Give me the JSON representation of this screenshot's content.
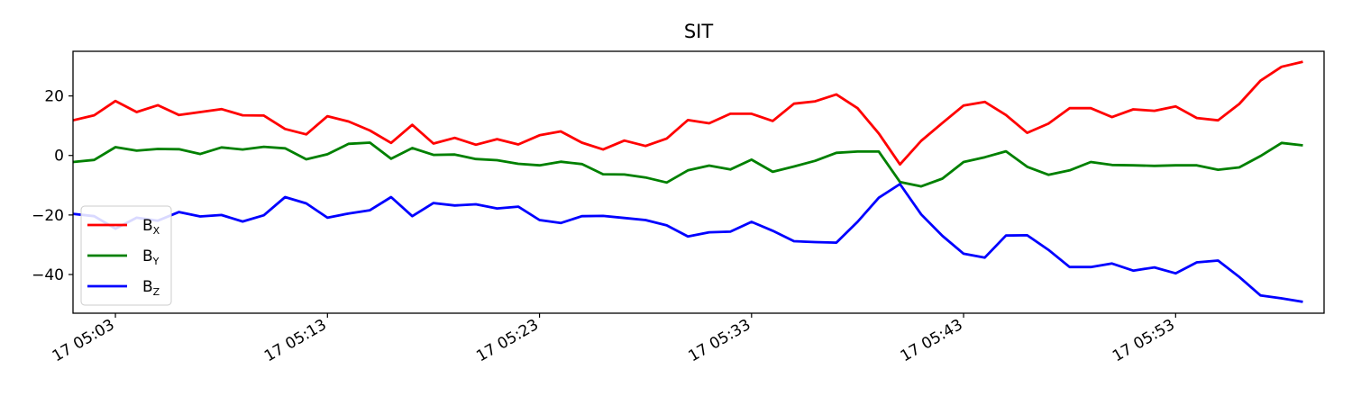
{
  "chart_data": {
    "type": "line",
    "title": "SIT",
    "xlabel": "",
    "ylabel": "",
    "x_unit": "minute",
    "x_start": "17 05:01",
    "x_end": "17 06:00",
    "xlim": [
      "17 05:01",
      "17 06:00"
    ],
    "ylim": [
      -53,
      35
    ],
    "x_ticks": [
      "17 05:03",
      "17 05:13",
      "17 05:23",
      "17 05:33",
      "17 05:43",
      "17 05:53"
    ],
    "y_ticks": [
      20,
      0,
      -20,
      -40
    ],
    "grid": false,
    "legend": "lower-left",
    "series": [
      {
        "name": "B",
        "subscript": "X",
        "color": "#ff0000",
        "values": [
          11.8,
          13.5,
          18.3,
          14.6,
          16.9,
          13.6,
          14.6,
          15.6,
          13.5,
          13.4,
          8.9,
          7.1,
          13.2,
          11.4,
          8.4,
          4.2,
          10.3,
          4.0,
          5.9,
          3.6,
          5.5,
          3.7,
          6.8,
          8.1,
          4.3,
          2.0,
          5.0,
          3.2,
          5.7,
          11.9,
          10.8,
          14.0,
          14.0,
          11.6,
          17.4,
          18.2,
          20.5,
          15.9,
          7.4,
          -3.0,
          4.9,
          10.9,
          16.8,
          18.0,
          13.6,
          7.6,
          10.7,
          15.9,
          15.9,
          12.9,
          15.5,
          15.0,
          16.5,
          12.6,
          11.8,
          17.3,
          25.1,
          29.8,
          31.5
        ]
      },
      {
        "name": "B",
        "subscript": "Y",
        "color": "#008000",
        "values": [
          -2.2,
          -1.5,
          2.8,
          1.6,
          2.2,
          2.1,
          0.5,
          2.7,
          2.0,
          2.9,
          2.4,
          -1.3,
          0.4,
          3.9,
          4.3,
          -1.1,
          2.5,
          0.2,
          0.3,
          -1.2,
          -1.6,
          -2.8,
          -3.3,
          -2.1,
          -2.9,
          -6.3,
          -6.4,
          -7.4,
          -9.1,
          -5.0,
          -3.4,
          -4.7,
          -1.4,
          -5.5,
          -3.7,
          -1.8,
          0.9,
          1.3,
          1.3,
          -8.9,
          -10.4,
          -7.8,
          -2.2,
          -0.6,
          1.4,
          -3.8,
          -6.5,
          -5.0,
          -2.2,
          -3.2,
          -3.3,
          -3.5,
          -3.3,
          -3.3,
          -4.8,
          -4.0,
          -0.2,
          4.2,
          3.4
        ]
      },
      {
        "name": "B",
        "subscript": "Z",
        "color": "#0000ff",
        "values": [
          -19.6,
          -20.4,
          -24.6,
          -20.9,
          -21.9,
          -19.0,
          -20.5,
          -20.0,
          -22.2,
          -20.1,
          -14.0,
          -16.1,
          -20.9,
          -19.5,
          -18.4,
          -14.0,
          -20.4,
          -16.0,
          -16.8,
          -16.4,
          -17.8,
          -17.2,
          -21.7,
          -22.7,
          -20.4,
          -20.3,
          -21.0,
          -21.7,
          -23.5,
          -27.2,
          -25.8,
          -25.6,
          -22.3,
          -25.3,
          -28.8,
          -29.1,
          -29.3,
          -22.3,
          -14.2,
          -9.6,
          -19.8,
          -27.0,
          -33.0,
          -34.3,
          -26.9,
          -26.8,
          -31.7,
          -37.5,
          -37.5,
          -36.3,
          -38.7,
          -37.6,
          -39.6,
          -35.9,
          -35.3,
          -40.8,
          -47.0,
          -48.0,
          -49.2
        ]
      }
    ]
  },
  "colors": {
    "axis": "#000000",
    "background": "#ffffff"
  }
}
